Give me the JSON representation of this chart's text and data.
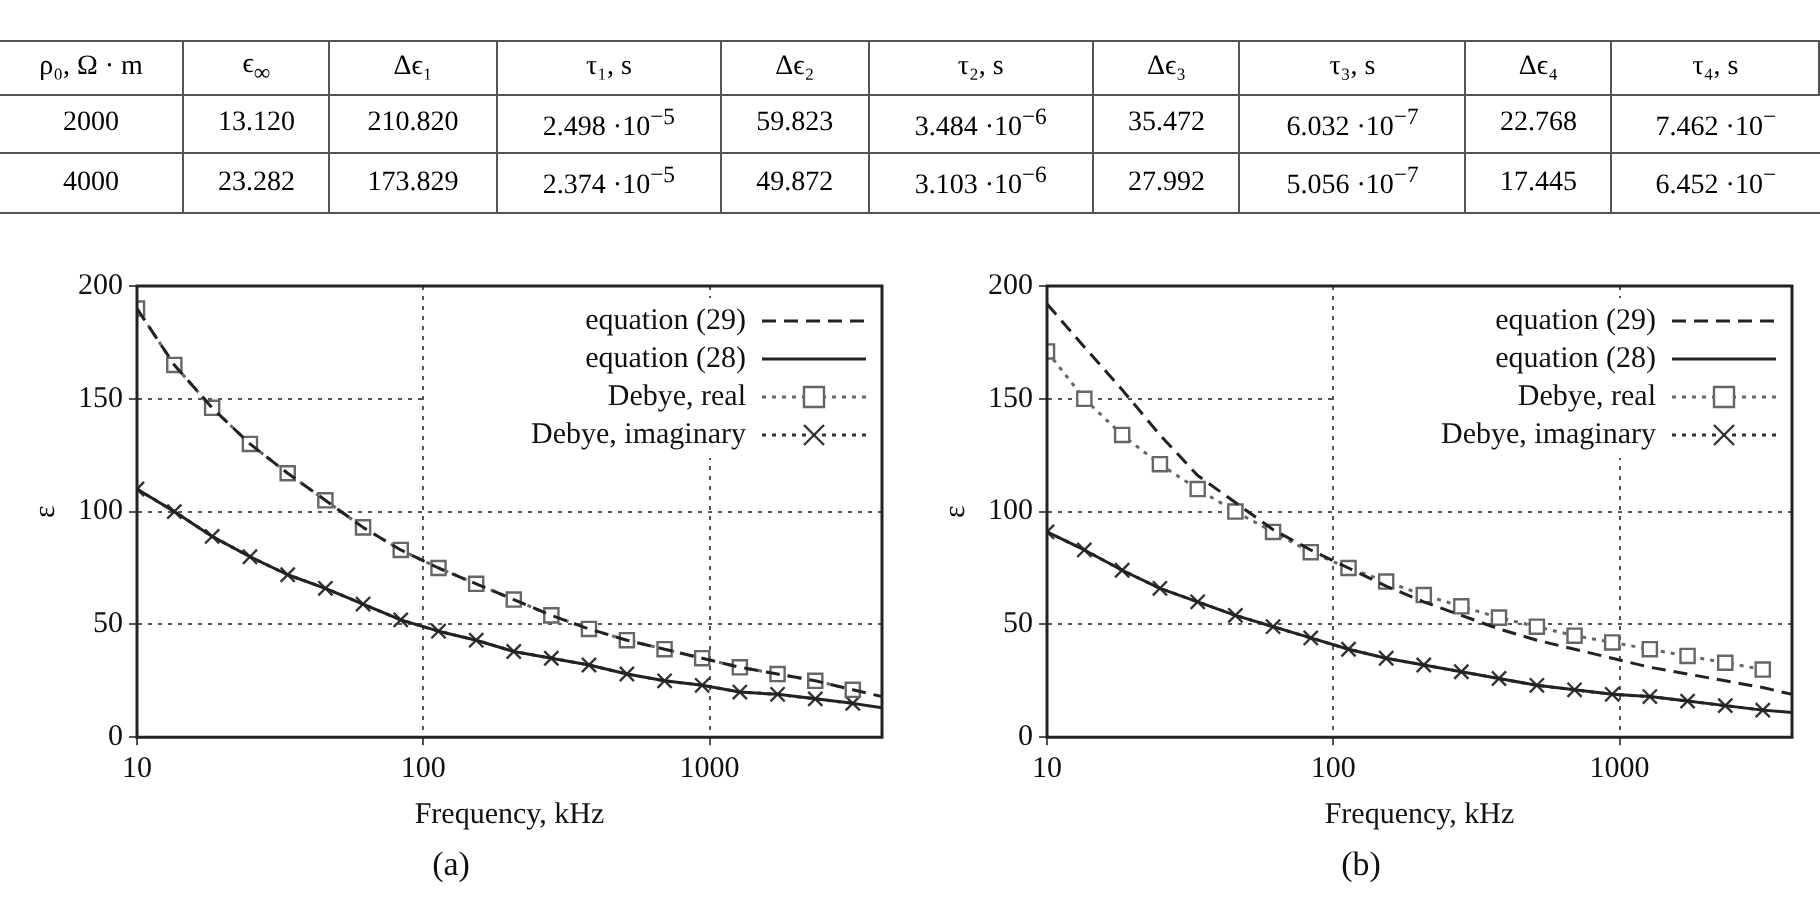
{
  "chart_data": [
    {
      "type": "other",
      "categories": [
        "ρ₀, Ω · m",
        "ϵ$_{∞}$",
        "Δϵ₁",
        "τ₁, s",
        "Δϵ₂",
        "τ₂, s",
        "Δϵ₃",
        "τ₃, s",
        "Δϵ₄",
        "τ₄, s"
      ],
      "annotations": [
        "2000",
        "13.120",
        "210.820",
        "2.498 ·10$^{−5}$",
        "59.823",
        "3.484 ·10$^{−6}$",
        "35.472",
        "6.032 ·10$^{−7}$",
        "22.768",
        "7.462 ·10$^{−}$",
        "4000",
        "23.282",
        "173.829",
        "2.374 ·10$^{−5}$",
        "49.872",
        "3.103 ·10$^{−6}$",
        "27.992",
        "5.056 ·10$^{−7}$",
        "17.445",
        "6.452 ·10$^{−}$"
      ]
    },
    {
      "type": "line",
      "title": "(a)",
      "xlabel": "Frequency, kHz",
      "ylabel": "ε",
      "log": "x",
      "xlim": [
        10,
        4000
      ],
      "xticks": [
        10,
        100,
        1000
      ],
      "ylim": [
        0,
        200
      ],
      "yticks": [
        0,
        50,
        100,
        150,
        200
      ],
      "grid": true,
      "legend": "top right",
      "series": [
        {
          "name": "equation (29)",
          "color": "#222222",
          "line_style": "dashed",
          "marker": "none",
          "x": [
            10,
            13.5,
            18.3,
            24.8,
            33.6,
            45.5,
            61.6,
            83.4,
            113,
            153,
            207,
            280,
            379,
            514,
            696,
            942,
            1275,
            1727,
            2339,
            3162,
            4000
          ],
          "values": [
            190,
            165,
            146,
            130,
            117,
            105,
            93,
            83,
            75,
            68,
            61,
            54,
            48,
            43,
            39,
            35,
            31,
            28,
            25,
            21,
            18
          ]
        },
        {
          "name": "equation (28)",
          "color": "#222222",
          "line_style": "solid",
          "marker": "none",
          "x": [
            10,
            13.5,
            18.3,
            24.8,
            33.6,
            45.5,
            61.6,
            83.4,
            113,
            153,
            207,
            280,
            379,
            514,
            696,
            942,
            1275,
            1727,
            2339,
            3162,
            4000
          ],
          "values": [
            110,
            100,
            89,
            80,
            72,
            66,
            59,
            52,
            47,
            43,
            38,
            35,
            32,
            28,
            25,
            23,
            20,
            19,
            17,
            15,
            13
          ]
        },
        {
          "name": "Debye, real",
          "color": "#666666",
          "line_style": "dotted",
          "marker": "square",
          "x": [
            10,
            13.5,
            18.3,
            24.8,
            33.6,
            45.5,
            61.6,
            83.4,
            113,
            153,
            207,
            280,
            379,
            514,
            696,
            942,
            1275,
            1727,
            2339,
            3162
          ],
          "values": [
            190,
            165,
            146,
            130,
            117,
            105,
            93,
            83,
            75,
            68,
            61,
            54,
            48,
            43,
            39,
            35,
            31,
            28,
            25,
            21
          ]
        },
        {
          "name": "Debye, imaginary",
          "color": "#333333",
          "line_style": "dotted",
          "marker": "cross",
          "x": [
            10,
            13.5,
            18.3,
            24.8,
            33.6,
            45.5,
            61.6,
            83.4,
            113,
            153,
            207,
            280,
            379,
            514,
            696,
            942,
            1275,
            1727,
            2339,
            3162
          ],
          "values": [
            110,
            100,
            89,
            80,
            72,
            66,
            59,
            52,
            47,
            43,
            38,
            35,
            32,
            28,
            25,
            23,
            20,
            19,
            17,
            15
          ]
        }
      ]
    },
    {
      "type": "line",
      "title": "(b)",
      "xlabel": "Frequency, kHz",
      "ylabel": "ε",
      "log": "x",
      "xlim": [
        10,
        4000
      ],
      "xticks": [
        10,
        100,
        1000
      ],
      "ylim": [
        0,
        200
      ],
      "yticks": [
        0,
        50,
        100,
        150,
        200
      ],
      "grid": true,
      "legend": "top right",
      "series": [
        {
          "name": "equation (29)",
          "color": "#222222",
          "line_style": "dashed",
          "marker": "none",
          "x": [
            10,
            13.5,
            18.3,
            24.8,
            33.6,
            45.5,
            61.6,
            83.4,
            113,
            153,
            207,
            280,
            379,
            514,
            696,
            942,
            1275,
            1727,
            2339,
            3162,
            4000
          ],
          "values": [
            192,
            173,
            154,
            134,
            116,
            104,
            92,
            83,
            75,
            67,
            60,
            54,
            48,
            43,
            39,
            35,
            31,
            28,
            25,
            22,
            19
          ]
        },
        {
          "name": "equation (28)",
          "color": "#222222",
          "line_style": "solid",
          "marker": "none",
          "x": [
            10,
            13.5,
            18.3,
            24.8,
            33.6,
            45.5,
            61.6,
            83.4,
            113,
            153,
            207,
            280,
            379,
            514,
            696,
            942,
            1275,
            1727,
            2339,
            3162,
            4000
          ],
          "values": [
            91,
            83,
            74,
            66,
            60,
            54,
            49,
            44,
            39,
            35,
            32,
            29,
            26,
            23,
            21,
            19,
            18,
            16,
            14,
            12,
            11
          ]
        },
        {
          "name": "Debye, real",
          "color": "#666666",
          "line_style": "dotted",
          "marker": "square",
          "x": [
            10,
            13.5,
            18.3,
            24.8,
            33.6,
            45.5,
            61.6,
            83.4,
            113,
            153,
            207,
            280,
            379,
            514,
            696,
            942,
            1275,
            1727,
            2339,
            3162
          ],
          "values": [
            171,
            150,
            134,
            121,
            110,
            100,
            91,
            82,
            75,
            69,
            63,
            58,
            53,
            49,
            45,
            42,
            39,
            36,
            33,
            30
          ]
        },
        {
          "name": "Debye, imaginary",
          "color": "#333333",
          "line_style": "dotted",
          "marker": "cross",
          "x": [
            10,
            13.5,
            18.3,
            24.8,
            33.6,
            45.5,
            61.6,
            83.4,
            113,
            153,
            207,
            280,
            379,
            514,
            696,
            942,
            1275,
            1727,
            2339,
            3162
          ],
          "values": [
            91,
            83,
            74,
            66,
            60,
            54,
            49,
            44,
            39,
            35,
            32,
            29,
            26,
            23,
            21,
            19,
            18,
            16,
            14,
            12
          ]
        }
      ]
    }
  ]
}
